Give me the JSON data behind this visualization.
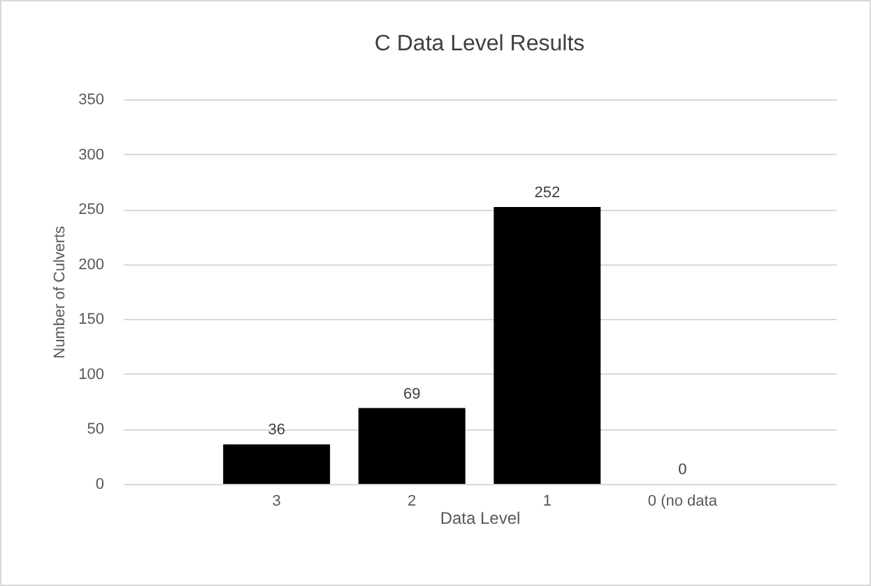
{
  "chart_data": {
    "type": "bar",
    "title": "C Data Level Results",
    "xlabel": "Data Level",
    "ylabel": "Number of Culverts",
    "categories": [
      "3",
      "2",
      "1",
      "0 (no data"
    ],
    "values": [
      36,
      69,
      252,
      0
    ],
    "color": "#000000",
    "ylim": [
      0,
      350
    ],
    "yticks": [
      0,
      50,
      100,
      150,
      200,
      250,
      300,
      350
    ],
    "grid": "y",
    "data_labels": true
  }
}
